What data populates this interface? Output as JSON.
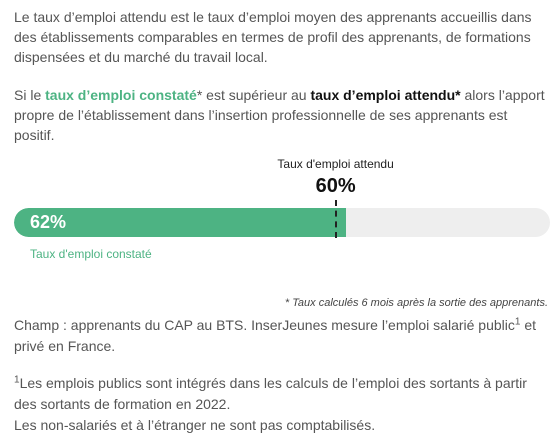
{
  "intro": {
    "paragraph1": "Le taux d’emploi attendu est le taux d’emploi moyen des apprenants accueillis dans des établissements comparables en termes de profil des apprenants, de formations dispensées et du marché du travail local.",
    "p2_si": "Si le ",
    "p2_observed": "taux d’emploi constaté",
    "p2_star1": "*",
    "p2_mid": " est supérieur au ",
    "p2_expected": "taux d’emploi attendu*",
    "p2_end": " alors l’apport propre de l’établissement dans l’insertion professionnelle de ses apprenants est positif."
  },
  "gauge": {
    "expected_label": "Taux d'emploi attendu",
    "expected_value_label": "60%",
    "expected_value": 60,
    "observed_value_label": "62%",
    "observed_value": 62,
    "observed_label": "Taux d'emploi constaté",
    "colors": {
      "observed": "#4db383",
      "track": "#eeeeee",
      "marker": "#222222"
    }
  },
  "notes": {
    "calc_note": "* Taux calculés 6 mois après la sortie des apprenants.",
    "champ_a": "Champ : apprenants du CAP au BTS. InserJeunes mesure l’emploi salarié public",
    "champ_sup": "1",
    "champ_b": " et privé en France.",
    "fn_sup": "1",
    "fn_line1": "Les emplois publics sont intégrés dans les calculs de l’emploi des sortants à partir des sortants de formation en 2022.",
    "fn_line2": "Les non-salariés et à l’étranger ne sont pas comptabilisés."
  }
}
